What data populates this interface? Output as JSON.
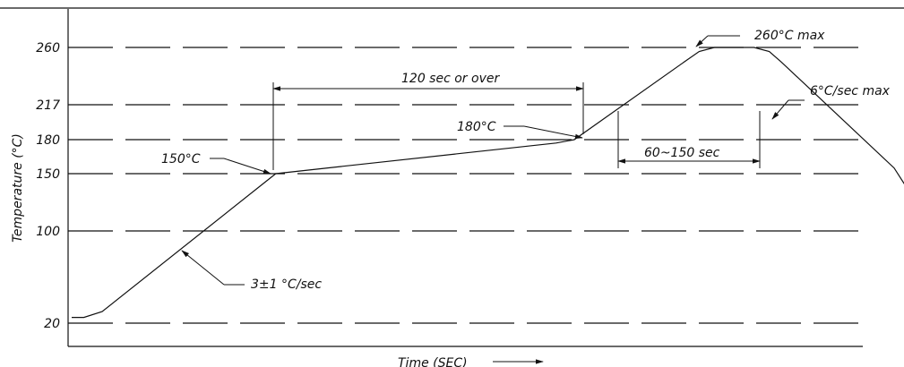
{
  "chart_data": {
    "type": "line",
    "title": "",
    "xlabel": "Time (SEC)",
    "ylabel": "Temperature (°C)",
    "y_ticks": [
      20,
      100,
      150,
      180,
      217,
      260
    ],
    "y_tick_labels": [
      "20",
      "100",
      "150",
      "180",
      "217",
      "260"
    ],
    "grid": true,
    "series": [
      {
        "values": [
          [
            0,
            25
          ],
          [
            4,
            25
          ],
          [
            10,
            30
          ],
          [
            67,
            150
          ],
          [
            101,
            160
          ],
          [
            159,
            177
          ],
          [
            165,
            180
          ],
          [
            201,
            249
          ],
          [
            206,
            257
          ],
          [
            211,
            260
          ],
          [
            224,
            260
          ],
          [
            229,
            257
          ],
          [
            233,
            249
          ],
          [
            270,
            155
          ],
          [
            276,
            130
          ]
        ]
      }
    ],
    "annotations": {
      "peak": "260°C max",
      "ramp_down": "6°C/sec max",
      "soak_duration": "120 sec or over",
      "soak_end": "180°C",
      "soak_start": "150°C",
      "reflow_duration": "60~150 sec",
      "ramp_up": "3±1 °C/sec"
    }
  }
}
